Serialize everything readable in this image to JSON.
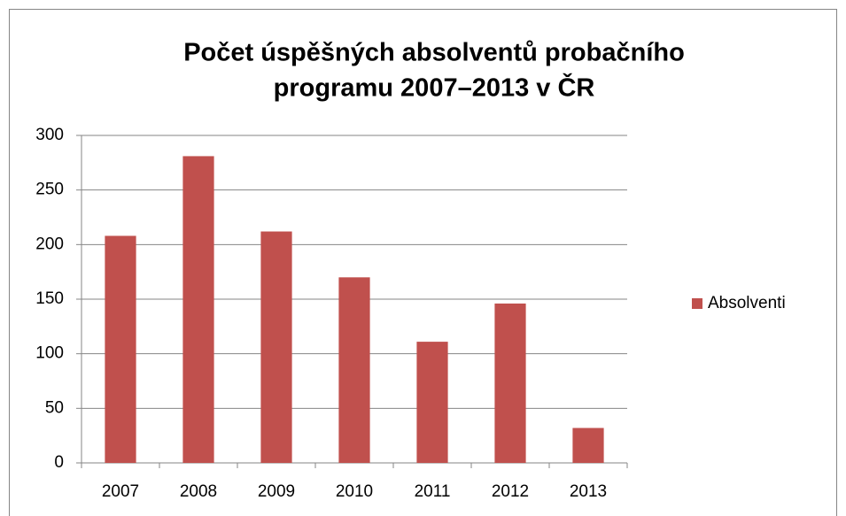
{
  "chart_data": {
    "type": "bar",
    "title": [
      "Počet úspěšných absolventů probačního",
      "programu 2007–2013 v ČR"
    ],
    "categories": [
      "2007",
      "2008",
      "2009",
      "2010",
      "2011",
      "2012",
      "2013"
    ],
    "series": [
      {
        "name": "Absolventi",
        "color": "#c0504d",
        "values": [
          208,
          281,
          212,
          170,
          111,
          146,
          32
        ]
      }
    ],
    "ylim": [
      0,
      300
    ],
    "yticks": [
      0,
      50,
      100,
      150,
      200,
      250,
      300
    ],
    "grid": true,
    "legend": "right"
  }
}
